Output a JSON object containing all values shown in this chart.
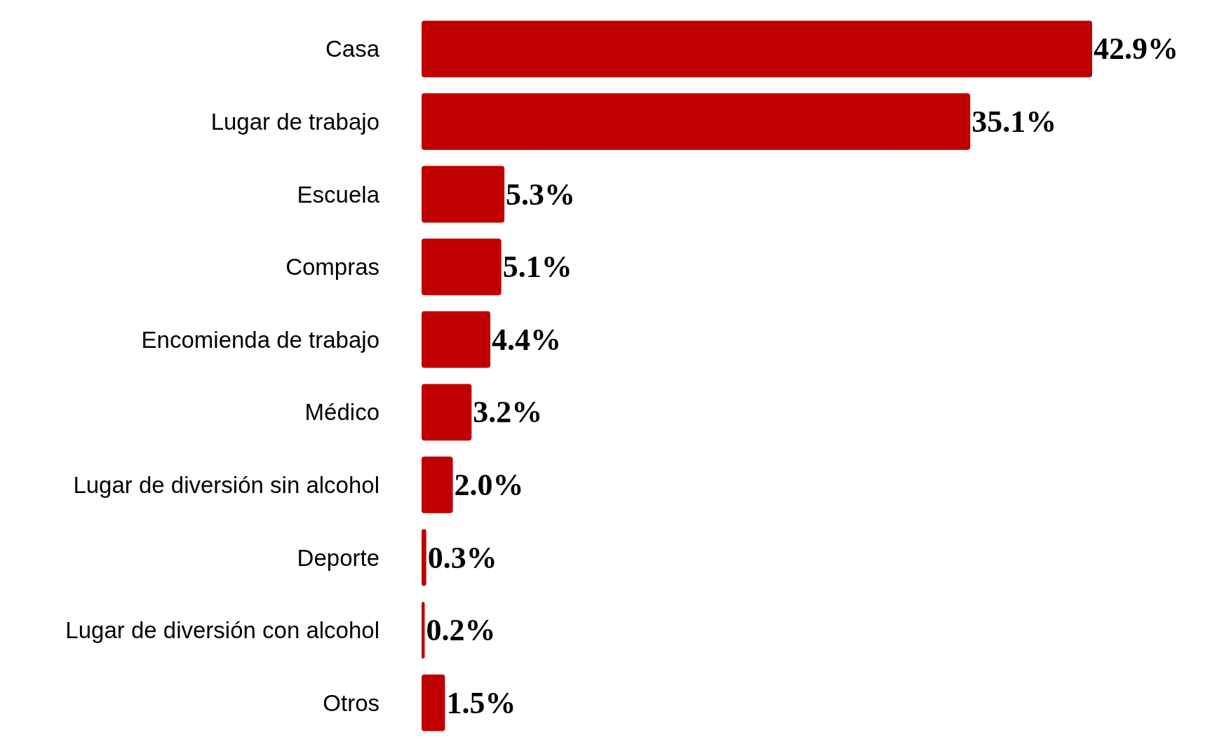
{
  "chart_data": {
    "type": "bar",
    "orientation": "horizontal",
    "categories": [
      "Casa",
      "Lugar de trabajo",
      "Escuela",
      "Compras",
      "Encomienda de trabajo",
      "Médico",
      "Lugar de diversión sin alcohol",
      "Deporte",
      "Lugar de diversión con alcohol",
      "Otros"
    ],
    "values": [
      42.9,
      35.1,
      5.3,
      5.1,
      4.4,
      3.2,
      2.0,
      0.3,
      0.2,
      1.5
    ],
    "value_labels": [
      "42.9%",
      "35.1%",
      "5.3%",
      "5.1%",
      "4.4%",
      "3.2%",
      "2.0%",
      "0.3%",
      "0.2%",
      "1.5%"
    ],
    "color": "#c00000"
  }
}
